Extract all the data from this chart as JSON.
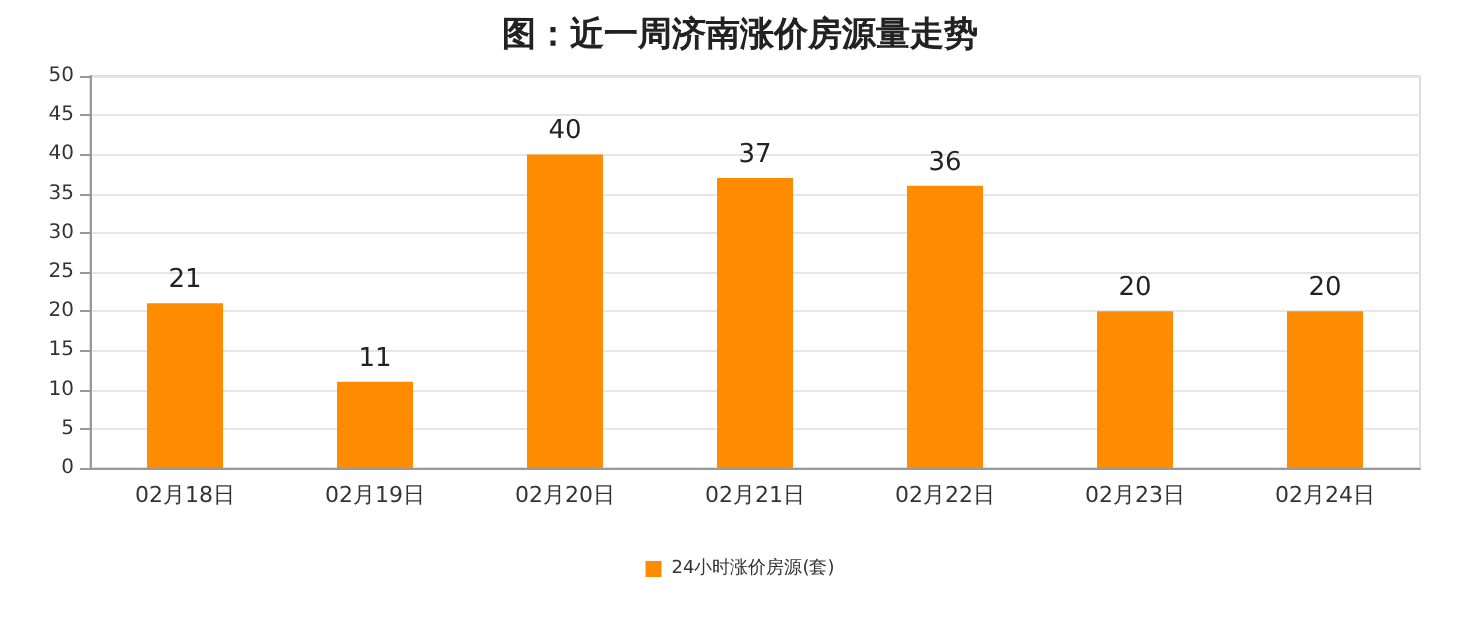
{
  "chart_data": {
    "type": "bar",
    "title": "图：近一周济南涨价房源量走势",
    "categories": [
      "02月18日",
      "02月19日",
      "02月20日",
      "02月21日",
      "02月22日",
      "02月23日",
      "02月24日"
    ],
    "series": [
      {
        "name": "24小时涨价房源(套)",
        "color": "#ff8c00",
        "values": [
          21,
          11,
          40,
          37,
          36,
          20,
          20
        ]
      }
    ],
    "ylim": [
      0,
      50
    ],
    "yticks": [
      0,
      5,
      10,
      15,
      20,
      25,
      30,
      35,
      40,
      45,
      50
    ],
    "grid": "y",
    "legend": "bottom",
    "data_labels": true
  }
}
